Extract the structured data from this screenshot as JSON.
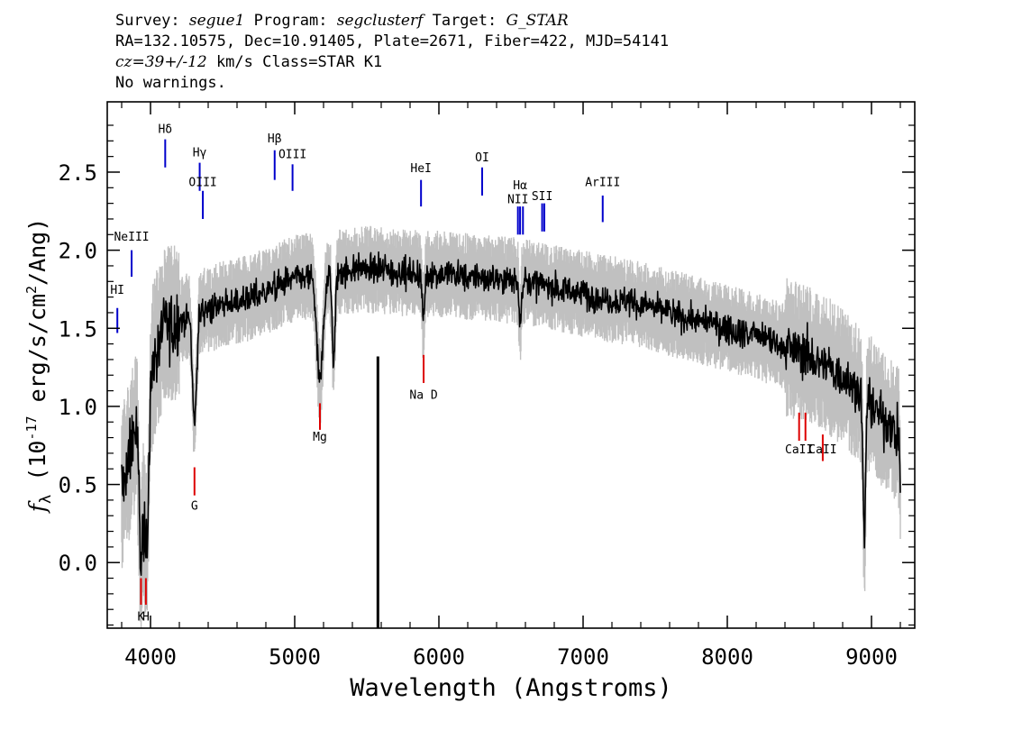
{
  "header": {
    "survey_label": "Survey: ",
    "survey": "segue1",
    "program_label": " Program: ",
    "program": "segclusterf",
    "target_label": " Target: ",
    "target": "G_STAR",
    "line2": "RA=132.10575, Dec=10.91405, Plate=2671, Fiber=422, MJD=54141",
    "cz_label": "cz=39+/-12",
    "line3_rest": " km/s Class=STAR K1",
    "line4": "No warnings."
  },
  "chart_data": {
    "type": "line",
    "xlabel": "Wavelength (Angstroms)",
    "ylabel": "f_λ (10^-17 erg/s/cm^2/Ang)",
    "xlim": [
      3700,
      9300
    ],
    "ylim": [
      -0.42,
      2.95
    ],
    "xticks": [
      4000,
      5000,
      6000,
      7000,
      8000,
      9000
    ],
    "xtick_labels": [
      "4000",
      "5000",
      "6000",
      "7000",
      "8000",
      "9000"
    ],
    "yticks": [
      0.0,
      0.5,
      1.0,
      1.5,
      2.0,
      2.5
    ],
    "ytick_labels": [
      "0.0",
      "0.5",
      "1.0",
      "1.5",
      "2.0",
      "2.5"
    ],
    "colors": {
      "flux": "#000000",
      "noise_envelope": "#c0c0c0",
      "emission": "#0000cc",
      "absorption": "#dd0000"
    },
    "continuum": {
      "x": [
        3800,
        3850,
        3900,
        3950,
        4000,
        4100,
        4200,
        4300,
        4400,
        4500,
        4700,
        5000,
        5200,
        5500,
        5800,
        6000,
        6300,
        6600,
        7000,
        7400,
        7800,
        8200,
        8500,
        8800,
        9000,
        9200
      ],
      "y": [
        0.45,
        0.65,
        0.9,
        1.05,
        1.25,
        1.5,
        1.55,
        1.6,
        1.62,
        1.65,
        1.7,
        1.82,
        1.85,
        1.88,
        1.85,
        1.85,
        1.82,
        1.8,
        1.72,
        1.65,
        1.55,
        1.45,
        1.35,
        1.2,
        1.0,
        0.8
      ]
    },
    "features": [
      {
        "x": 3968,
        "y": 0.05,
        "w": 25
      },
      {
        "x": 3934,
        "y": 0.05,
        "w": 20
      },
      {
        "x": 4305,
        "y": 0.9,
        "w": 20
      },
      {
        "x": 5175,
        "y": 1.15,
        "w": 30
      },
      {
        "x": 5270,
        "y": 1.3,
        "w": 15
      },
      {
        "x": 5892,
        "y": 1.55,
        "w": 12
      },
      {
        "x": 6563,
        "y": 1.55,
        "w": 10
      },
      {
        "x": 8950,
        "y": 0.15,
        "w": 12
      },
      {
        "x": 9210,
        "y": 0.3,
        "w": 12
      }
    ],
    "spikes": [
      {
        "x": 5577,
        "y0": -0.42,
        "y1": 1.32
      }
    ],
    "line_labels": [
      {
        "label": "HI",
        "x": 3770,
        "y": 1.72,
        "tick_y": [
          1.47,
          1.63
        ],
        "kind": "emission"
      },
      {
        "label": "NeIII",
        "x": 3869,
        "y": 2.06,
        "tick_y": [
          1.83,
          2.0
        ],
        "kind": "emission"
      },
      {
        "label": "Hδ",
        "x": 4102,
        "y": 2.75,
        "tick_y": [
          2.53,
          2.71
        ],
        "kind": "emission"
      },
      {
        "label": "Hγ",
        "x": 4341,
        "y": 2.6,
        "tick_y": [
          2.38,
          2.56
        ],
        "kind": "emission"
      },
      {
        "label": "OIII",
        "x": 4363,
        "y": 2.41,
        "tick_y": [
          2.2,
          2.38
        ],
        "kind": "emission"
      },
      {
        "label": "Hβ",
        "x": 4861,
        "y": 2.69,
        "tick_y": [
          2.45,
          2.64
        ],
        "kind": "emission"
      },
      {
        "label": "OIII",
        "x": 4985,
        "y": 2.59,
        "tick_y": [
          2.38,
          2.55
        ],
        "kind": "emission"
      },
      {
        "label": "HeI",
        "x": 5876,
        "y": 2.5,
        "tick_y": [
          2.28,
          2.45
        ],
        "kind": "emission"
      },
      {
        "label": "OI",
        "x": 6300,
        "y": 2.57,
        "tick_y": [
          2.35,
          2.53
        ],
        "kind": "emission"
      },
      {
        "label": "NII",
        "x": 6548,
        "y": 2.3,
        "tick_y": [
          2.1,
          2.28
        ],
        "kind": "emission"
      },
      {
        "label": "Hα",
        "x": 6563,
        "y": 2.39,
        "tick_y": [
          2.1,
          2.28
        ],
        "kind": "emission"
      },
      {
        "label": "NII",
        "x": 6583,
        "y": 2.3,
        "tick_y": [
          2.1,
          2.28
        ],
        "kind": "emission"
      },
      {
        "label": "SII",
        "x": 6716,
        "y": 2.32,
        "tick_y": [
          2.12,
          2.3
        ],
        "kind": "emission"
      },
      {
        "label": "SII",
        "x": 6731,
        "y": 2.32,
        "tick_y": [
          2.12,
          2.3
        ],
        "kind": "emission"
      },
      {
        "label": "ArIII",
        "x": 7136,
        "y": 2.41,
        "tick_y": [
          2.18,
          2.35
        ],
        "kind": "emission"
      },
      {
        "label": "K",
        "x": 3934,
        "y": -0.37,
        "tick_y": [
          -0.27,
          -0.1
        ],
        "kind": "absorption"
      },
      {
        "label": "H",
        "x": 3968,
        "y": -0.37,
        "tick_y": [
          -0.27,
          -0.1
        ],
        "kind": "absorption"
      },
      {
        "label": "G",
        "x": 4305,
        "y": 0.34,
        "tick_y": [
          0.43,
          0.61
        ],
        "kind": "absorption"
      },
      {
        "label": "Mg",
        "x": 5175,
        "y": 0.78,
        "tick_y": [
          0.85,
          1.02
        ],
        "kind": "absorption"
      },
      {
        "label": "Na D",
        "x": 5894,
        "y": 1.05,
        "tick_y": [
          1.15,
          1.33
        ],
        "kind": "absorption"
      },
      {
        "label": "CaII",
        "x": 8498,
        "y": 0.7,
        "tick_y": [
          0.78,
          0.96
        ],
        "kind": "absorption"
      },
      {
        "label": "CaII",
        "x": 8542,
        "y": 0.7,
        "tick_y": [
          0.78,
          0.96
        ],
        "kind": "absorption"
      },
      {
        "label": "CaII",
        "x": 8662,
        "y": 0.7,
        "tick_y": [
          0.65,
          0.82
        ],
        "kind": "absorption"
      }
    ]
  }
}
